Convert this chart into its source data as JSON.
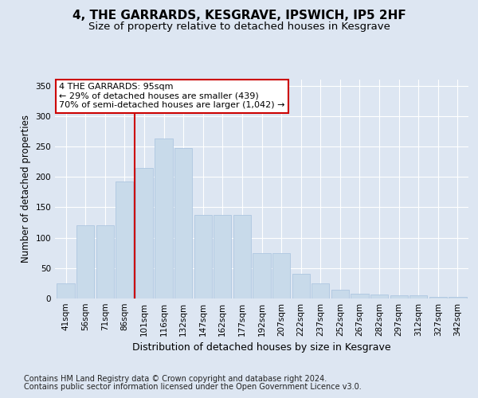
{
  "title": "4, THE GARRARDS, KESGRAVE, IPSWICH, IP5 2HF",
  "subtitle": "Size of property relative to detached houses in Kesgrave",
  "xlabel": "Distribution of detached houses by size in Kesgrave",
  "ylabel": "Number of detached properties",
  "categories": [
    "41sqm",
    "56sqm",
    "71sqm",
    "86sqm",
    "101sqm",
    "116sqm",
    "132sqm",
    "147sqm",
    "162sqm",
    "177sqm",
    "192sqm",
    "207sqm",
    "222sqm",
    "237sqm",
    "252sqm",
    "267sqm",
    "282sqm",
    "297sqm",
    "312sqm",
    "327sqm",
    "342sqm"
  ],
  "values": [
    25,
    120,
    120,
    193,
    215,
    263,
    247,
    137,
    137,
    137,
    75,
    75,
    40,
    25,
    15,
    8,
    7,
    5,
    5,
    3,
    3
  ],
  "bar_color": "#c8daea",
  "bar_edge_color": "#adc6e0",
  "vline_xindex": 3.5,
  "vline_color": "#cc0000",
  "annotation_text": "4 THE GARRARDS: 95sqm\n← 29% of detached houses are smaller (439)\n70% of semi-detached houses are larger (1,042) →",
  "annotation_box_facecolor": "white",
  "annotation_box_edgecolor": "#cc0000",
  "ylim_max": 360,
  "yticks": [
    0,
    50,
    100,
    150,
    200,
    250,
    300,
    350
  ],
  "footer_line1": "Contains HM Land Registry data © Crown copyright and database right 2024.",
  "footer_line2": "Contains public sector information licensed under the Open Government Licence v3.0.",
  "background_color": "#dde6f2",
  "grid_color": "white",
  "title_fontsize": 11,
  "subtitle_fontsize": 9.5,
  "ylabel_fontsize": 8.5,
  "xlabel_fontsize": 9,
  "tick_fontsize": 7.5,
  "footer_fontsize": 7,
  "ann_fontsize": 8
}
